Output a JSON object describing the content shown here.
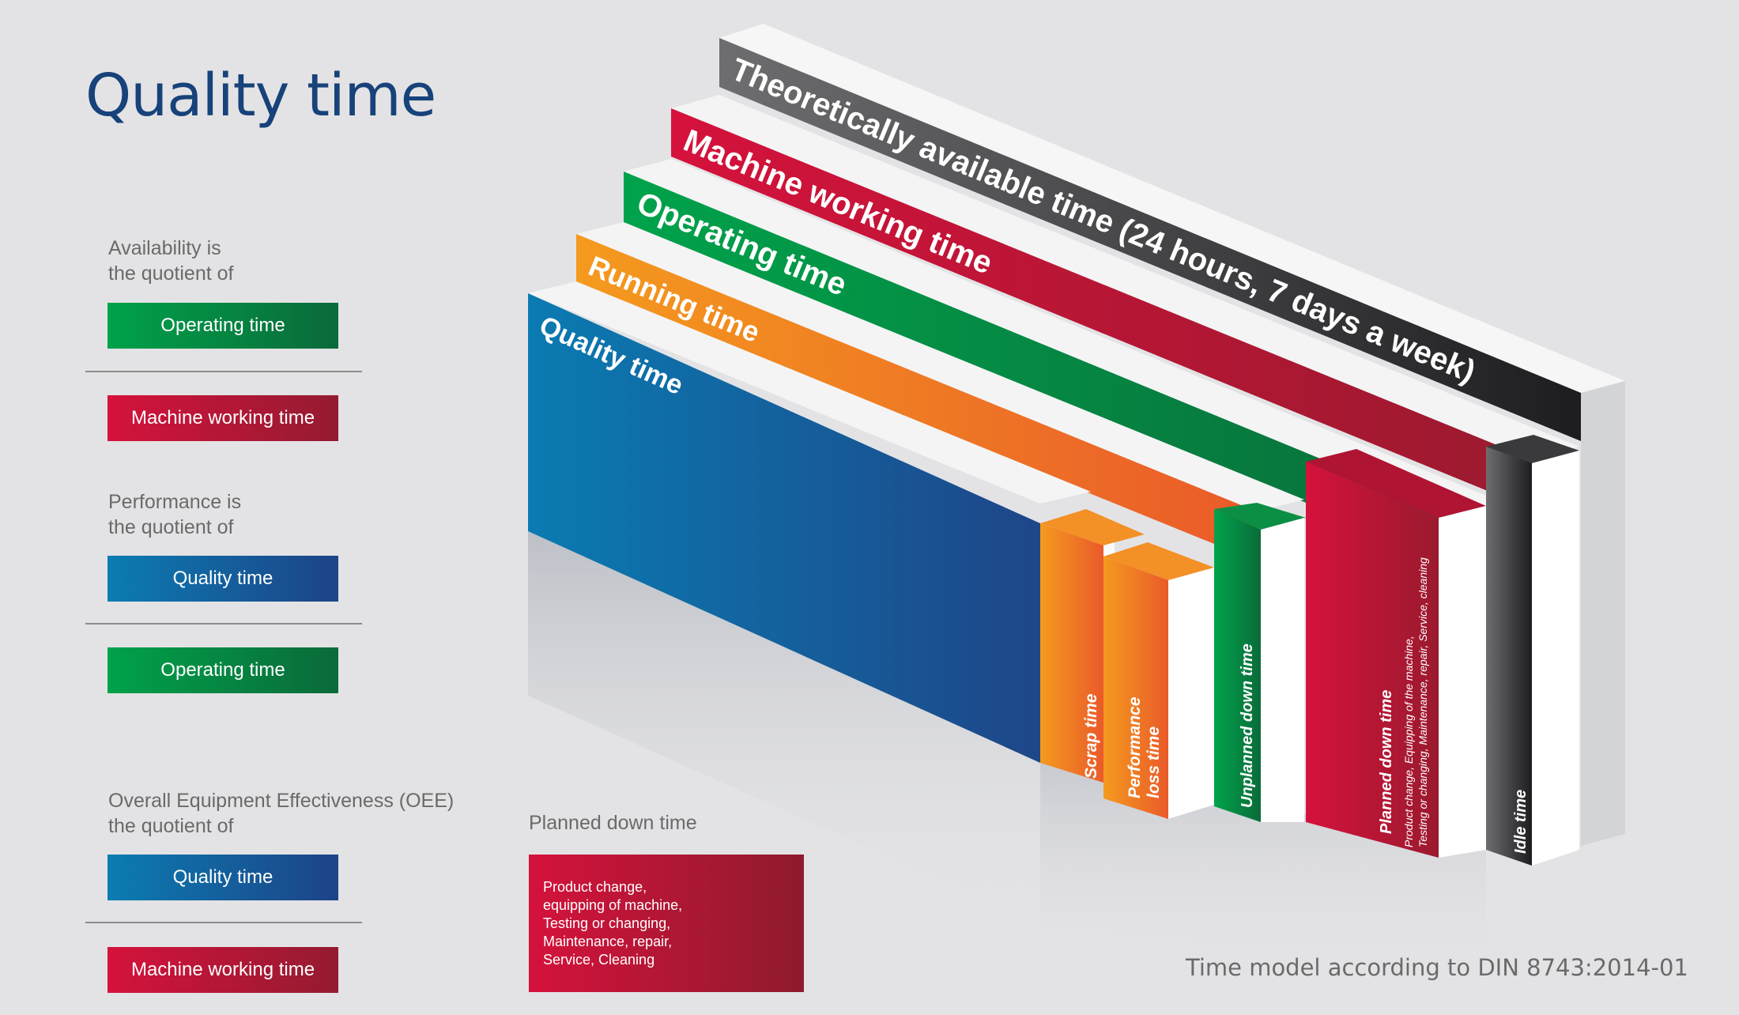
{
  "title": "Quality time",
  "legend": {
    "availability": {
      "caption": [
        "Availability is",
        "the quotient of"
      ],
      "numerator": "Operating time",
      "denominator": "Machine working time"
    },
    "performance": {
      "caption": [
        "Performance is",
        "the quotient of"
      ],
      "numerator": "Quality time",
      "denominator": "Operating time"
    },
    "oee": {
      "caption": [
        "Overall Equipment Effectiveness (OEE)",
        "the quotient of"
      ],
      "numerator": "Quality time",
      "denominator": "Machine working time"
    }
  },
  "planned_down": {
    "caption": "Planned down time",
    "lines": [
      "Product change,",
      "equipping of machine,",
      "Testing or changing,",
      "Maintenance, repair,",
      "Service, Cleaning"
    ]
  },
  "diagram": {
    "beams": [
      {
        "label": "Theoretically available time (24 hours, 7 days a week)",
        "color": "#595a5c"
      },
      {
        "label": "Machine working time",
        "color": "#c8143c"
      },
      {
        "label": "Operating time",
        "color": "#009a45"
      },
      {
        "label": "Running time",
        "color": "#f08a22"
      },
      {
        "label": "Quality time",
        "color": "#0c74ab"
      }
    ],
    "losses": [
      {
        "label": "Scrap time",
        "color": "#f08a22"
      },
      {
        "label": "Performance loss time",
        "color": "#f08a22"
      },
      {
        "label": "Unplanned down time",
        "color": "#009a45"
      },
      {
        "label": "Planned down time",
        "sublabel": "Product change, Equipping of the machine, Testing or changing, Maintenance, repair, Service, cleaning",
        "color": "#c8143c"
      },
      {
        "label": "Idle time",
        "color": "#3c3c3e"
      }
    ]
  },
  "footer": "Time model according to DIN 8743:2014-01"
}
